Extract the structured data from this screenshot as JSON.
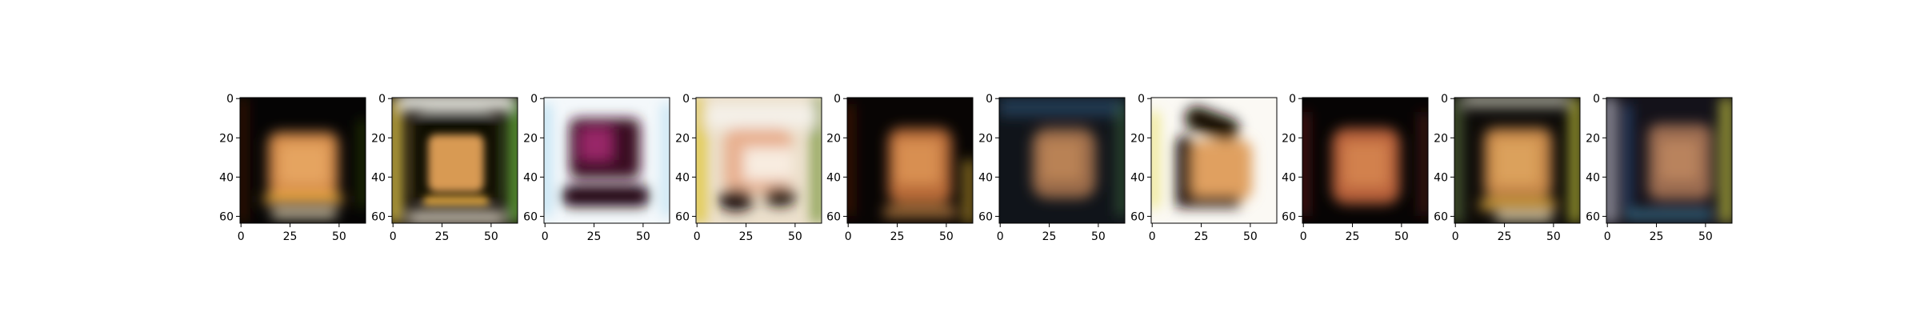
{
  "figure": {
    "panel_count": 10,
    "image_size": "64x64",
    "x_ticks": [
      "0",
      "25",
      "50"
    ],
    "y_ticks": [
      "0",
      "20",
      "40",
      "60"
    ],
    "panels": [
      {
        "index": 1,
        "background": "dark",
        "content": "blurry orange-yellow block centered, bright base band"
      },
      {
        "index": 2,
        "background": "multicolor border",
        "content": "orange block with dark outline, white/green edges"
      },
      {
        "index": 3,
        "background": "white",
        "content": "dark purple/magenta blob shaped like a cap with dark bottom"
      },
      {
        "index": 4,
        "background": "light pastel",
        "content": "light orange/white shape with dark lower blobs"
      },
      {
        "index": 5,
        "background": "dark",
        "content": "orange-red block, slightly shifted right"
      },
      {
        "index": 6,
        "background": "dark blue-green",
        "content": "muted orange blob centered"
      },
      {
        "index": 7,
        "background": "white",
        "content": "orange shape with dark curved outline on top and left"
      },
      {
        "index": 8,
        "background": "dark",
        "content": "orange-red blob with reddish edges"
      },
      {
        "index": 9,
        "background": "dark with colored border",
        "content": "orange block, bright base band"
      },
      {
        "index": 10,
        "background": "dark with colorful stripes",
        "content": "muted orange block with blue/green streaks"
      }
    ]
  }
}
